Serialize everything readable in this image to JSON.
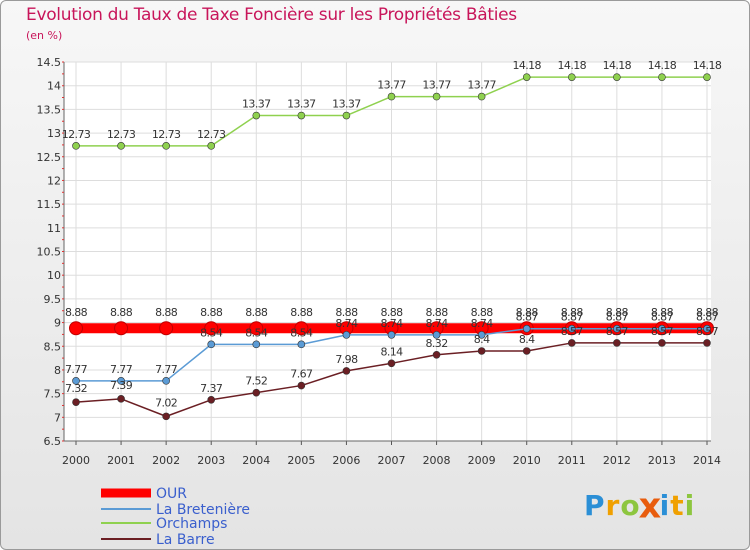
{
  "title": "Evolution du Taux de Taxe Foncière sur les Propriétés Bâties",
  "unit_label": "(en %)",
  "logo": {
    "letters": [
      "P",
      "r",
      "o",
      "x",
      "i",
      "t",
      "i"
    ],
    "colors": [
      "#2b8fd6",
      "#f0a000",
      "#8dc63f",
      "#e85c0d",
      "#2b8fd6",
      "#f0a000",
      "#8dc63f"
    ]
  },
  "chart_data": {
    "type": "line",
    "title": "Evolution du Taux de Taxe Foncière sur les Propriétés Bâties",
    "ylabel": "(en %)",
    "xlabel": "",
    "categories": [
      "2000",
      "2001",
      "2002",
      "2003",
      "2004",
      "2005",
      "2006",
      "2007",
      "2008",
      "2009",
      "2010",
      "2011",
      "2012",
      "2013",
      "2014"
    ],
    "ylim": [
      6.5,
      14.5
    ],
    "yticks": [
      "6.5",
      "7",
      "7.5",
      "8",
      "8.5",
      "9",
      "9.5",
      "10",
      "10.5",
      "11",
      "11.5",
      "12",
      "12.5",
      "13",
      "13.5",
      "14",
      "14.5"
    ],
    "grid": true,
    "legend_position": "bottom-left",
    "series": [
      {
        "name": "OUR",
        "color": "#ff0000",
        "values": [
          8.88,
          8.88,
          8.88,
          8.88,
          8.88,
          8.88,
          8.88,
          8.88,
          8.88,
          8.88,
          8.88,
          8.88,
          8.88,
          8.88,
          8.88
        ],
        "labels": [
          "8.88",
          "8.88",
          "8.88",
          "8.88",
          "8.88",
          "8.88",
          "8.88",
          "8.88",
          "8.88",
          "8.88",
          "8.88",
          "8.88",
          "8.88",
          "8.88",
          "8.88"
        ]
      },
      {
        "name": "La Bretenière",
        "color": "#5b9bd5",
        "values": [
          7.77,
          7.77,
          7.77,
          8.54,
          8.54,
          8.54,
          8.74,
          8.74,
          8.74,
          8.74,
          8.87,
          8.87,
          8.87,
          8.87,
          8.87
        ],
        "labels": [
          "7.77",
          "7.77",
          "7.77",
          "8.54",
          "8.54",
          "8.54",
          "8.74",
          "8.74",
          "8.74",
          "8.74",
          "8.87",
          "8.87",
          "8.87",
          "8.87",
          "8.87"
        ]
      },
      {
        "name": "Orchamps",
        "color": "#8fd14f",
        "values": [
          12.73,
          12.73,
          12.73,
          12.73,
          13.37,
          13.37,
          13.37,
          13.77,
          13.77,
          13.77,
          14.18,
          14.18,
          14.18,
          14.18,
          14.18
        ],
        "labels": [
          "12.73",
          "12.73",
          "12.73",
          "12.73",
          "13.37",
          "13.37",
          "13.37",
          "13.77",
          "13.77",
          "13.77",
          "14.18",
          "14.18",
          "14.18",
          "14.18",
          "14.18"
        ]
      },
      {
        "name": "La Barre",
        "color": "#6b1f24",
        "values": [
          7.32,
          7.39,
          7.02,
          7.37,
          7.52,
          7.67,
          7.98,
          8.14,
          8.32,
          8.4,
          8.4,
          8.57,
          8.57,
          8.57,
          8.57
        ],
        "labels": [
          "7.32",
          "7.39",
          "7.02",
          "7.37",
          "7.52",
          "7.67",
          "7.98",
          "8.14",
          "8.32",
          "8.4",
          "8.4",
          "8.57",
          "8.57",
          "8.57",
          "8.57"
        ]
      }
    ]
  }
}
